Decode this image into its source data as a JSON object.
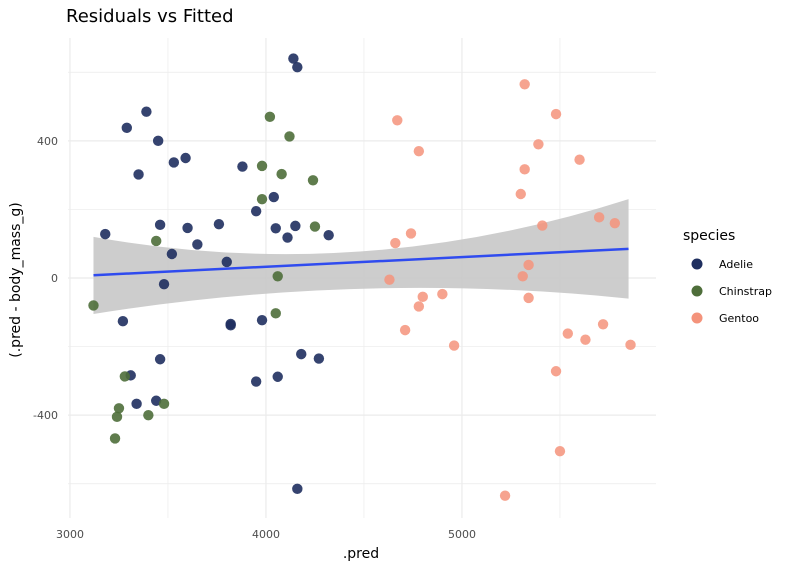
{
  "chart_data": {
    "type": "scatter",
    "title": "Residuals vs Fitted",
    "xlabel": ".pred",
    "ylabel": "(.pred - body_mass_g)",
    "xlim": [
      2990,
      5990
    ],
    "ylim": [
      -700,
      700
    ],
    "x_ticks": [
      3000,
      4000,
      5000
    ],
    "x_tick_labels": [
      "3000",
      "4000",
      "5000"
    ],
    "y_ticks": [
      -400,
      0,
      400
    ],
    "y_tick_labels": [
      "-400",
      "0",
      "400"
    ],
    "grid": true,
    "legend": {
      "title": "species",
      "position": "right",
      "entries": [
        "Adelie",
        "Chinstrap",
        "Gentoo"
      ]
    },
    "colors": {
      "Adelie": "#1f2f5f",
      "Chinstrap": "#4e6e3a",
      "Gentoo": "#f4937b",
      "trend": "#2f4bef",
      "band": "#c8c8c8"
    },
    "trend": {
      "x": [
        3120,
        5850
      ],
      "y": [
        8,
        85
      ],
      "band_upper": [
        120,
        230
      ],
      "band_lower": [
        -105,
        -60
      ]
    },
    "series": [
      {
        "name": "Adelie",
        "points": [
          [
            4140,
            640
          ],
          [
            4160,
            615
          ],
          [
            3390,
            485
          ],
          [
            3290,
            438
          ],
          [
            3450,
            400
          ],
          [
            3590,
            350
          ],
          [
            3530,
            337
          ],
          [
            3350,
            302
          ],
          [
            3880,
            325
          ],
          [
            4040,
            236
          ],
          [
            3950,
            195
          ],
          [
            3760,
            157
          ],
          [
            3460,
            155
          ],
          [
            3600,
            146
          ],
          [
            4050,
            145
          ],
          [
            4150,
            152
          ],
          [
            4110,
            118
          ],
          [
            4320,
            125
          ],
          [
            3180,
            128
          ],
          [
            3650,
            98
          ],
          [
            3800,
            47
          ],
          [
            3520,
            70
          ],
          [
            3480,
            -18
          ],
          [
            3270,
            -126
          ],
          [
            3820,
            -134
          ],
          [
            3980,
            -123
          ],
          [
            3820,
            -138
          ],
          [
            3460,
            -237
          ],
          [
            4180,
            -222
          ],
          [
            4270,
            -235
          ],
          [
            3310,
            -284
          ],
          [
            4060,
            -288
          ],
          [
            3950,
            -302
          ],
          [
            3340,
            -367
          ],
          [
            3440,
            -358
          ],
          [
            4160,
            -615
          ]
        ]
      },
      {
        "name": "Chinstrap",
        "points": [
          [
            4020,
            470
          ],
          [
            4120,
            413
          ],
          [
            3980,
            327
          ],
          [
            4080,
            303
          ],
          [
            4240,
            285
          ],
          [
            3980,
            230
          ],
          [
            4250,
            150
          ],
          [
            3440,
            108
          ],
          [
            4060,
            5
          ],
          [
            3120,
            -80
          ],
          [
            4050,
            -103
          ],
          [
            3280,
            -287
          ],
          [
            3480,
            -367
          ],
          [
            3250,
            -380
          ],
          [
            3400,
            -400
          ],
          [
            3240,
            -405
          ],
          [
            3230,
            -468
          ]
        ]
      },
      {
        "name": "Gentoo",
        "points": [
          [
            5320,
            565
          ],
          [
            5480,
            478
          ],
          [
            4670,
            460
          ],
          [
            4780,
            370
          ],
          [
            5390,
            390
          ],
          [
            5600,
            345
          ],
          [
            5320,
            317
          ],
          [
            5300,
            245
          ],
          [
            5700,
            177
          ],
          [
            5780,
            160
          ],
          [
            5410,
            153
          ],
          [
            4740,
            130
          ],
          [
            4660,
            102
          ],
          [
            5340,
            38
          ],
          [
            5310,
            5
          ],
          [
            4630,
            -5
          ],
          [
            4800,
            -55
          ],
          [
            4900,
            -47
          ],
          [
            5340,
            -58
          ],
          [
            4780,
            -83
          ],
          [
            4710,
            -152
          ],
          [
            5540,
            -162
          ],
          [
            5720,
            -135
          ],
          [
            5630,
            -180
          ],
          [
            5860,
            -195
          ],
          [
            4960,
            -197
          ],
          [
            5480,
            -272
          ],
          [
            5500,
            -505
          ],
          [
            5220,
            -635
          ]
        ]
      }
    ]
  }
}
